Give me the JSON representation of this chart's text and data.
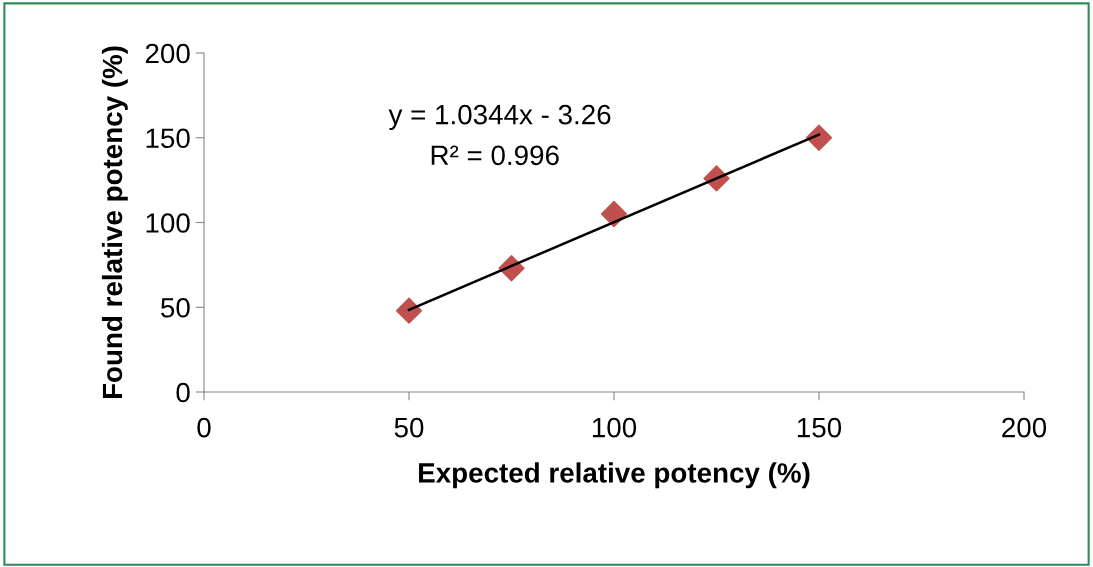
{
  "chart_data": {
    "type": "scatter",
    "xlabel": "Expected relative potency (%)",
    "ylabel": "Found relative potency (%)",
    "series": [
      {
        "color": "#c0504d",
        "marker": "diamond",
        "x": [
          50,
          75,
          100,
          125,
          150
        ],
        "values": [
          48,
          73,
          105,
          126,
          150
        ]
      },
      {
        "type": "line",
        "color": "#000000",
        "marker": "none",
        "line_style": "solid",
        "x": [
          50,
          150
        ],
        "values": [
          48.5,
          151.9
        ]
      }
    ],
    "annotations": [
      "y = 1.0344x - 3.26",
      "R² = 0.996"
    ],
    "xlim": [
      0,
      200
    ],
    "xticks": [
      0,
      50,
      100,
      150,
      200
    ],
    "ylim": [
      0,
      200
    ],
    "yticks": [
      0,
      50,
      100,
      150,
      200
    ],
    "grid": false,
    "legend": false
  }
}
